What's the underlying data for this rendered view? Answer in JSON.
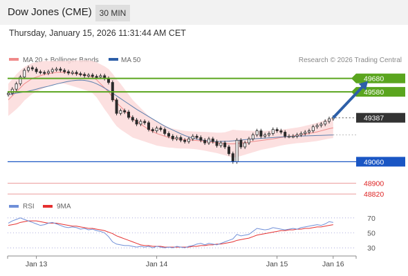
{
  "header": {
    "title": "Dow Jones (CME)",
    "timeframe": "30 MIN"
  },
  "datetime": "Thursday, January 15, 2026 11:31:44 AM CET",
  "colors": {
    "resistance": "#5aa51e",
    "support": "#1a56c4",
    "price": "#333333",
    "ma20": "#f08a8a",
    "bands": "#fbdada",
    "ma50": "#5b7fae",
    "candle_up": "#2a2a2a",
    "candle_down": "#2a2a2a",
    "rsi": "#6f8fd8",
    "rsi_ma": "#e53030",
    "arrow": "#2d5fa8"
  },
  "chart_data": [
    {
      "type": "candlestick",
      "legend": [
        {
          "label": "MA 20 + Bollinger Bands",
          "color": "#f08a8a"
        },
        {
          "label": "MA 50",
          "color": "#2d5fa8"
        }
      ],
      "source": "Research © 2026 Trading Central",
      "ylim": [
        48800,
        49750
      ],
      "x_ticks": [
        {
          "label": "Jan 13",
          "index": 7
        },
        {
          "label": "Jan 14",
          "index": 37
        },
        {
          "label": "Jan 15",
          "index": 67
        },
        {
          "label": "Jan 16",
          "index": 81
        }
      ],
      "last_price": 49387,
      "levels": [
        {
          "value": 49680,
          "label": "49680",
          "kind": "resistance"
        },
        {
          "value": 49580,
          "label": "49580",
          "kind": "resistance"
        },
        {
          "value": 49060,
          "label": "49060",
          "kind": "support"
        },
        {
          "value": 48900,
          "label": "48900",
          "kind": "minor"
        },
        {
          "value": 48820,
          "label": "48820",
          "kind": "minor"
        }
      ],
      "closes": [
        49570,
        49600,
        49640,
        49690,
        49740,
        49760,
        49750,
        49730,
        49725,
        49720,
        49730,
        49745,
        49750,
        49740,
        49730,
        49720,
        49725,
        49715,
        49710,
        49700,
        49705,
        49695,
        49690,
        49700,
        49680,
        49650,
        49520,
        49420,
        49440,
        49430,
        49390,
        49370,
        49340,
        49360,
        49350,
        49300,
        49290,
        49310,
        49300,
        49270,
        49250,
        49230,
        49240,
        49220,
        49210,
        49230,
        49250,
        49240,
        49220,
        49200,
        49230,
        49210,
        49180,
        49200,
        49170,
        49120,
        49060,
        49220,
        49170,
        49200,
        49230,
        49260,
        49290,
        49250,
        49260,
        49270,
        49300,
        49290,
        49280,
        49250,
        49250,
        49250,
        49260,
        49270,
        49280,
        49290,
        49320,
        49330,
        49340,
        49360,
        49380,
        49390
      ],
      "ma20": [
        49520,
        49550,
        49580,
        49610,
        49640,
        49660,
        49680,
        49690,
        49700,
        49710,
        49715,
        49720,
        49725,
        49726,
        49725,
        49722,
        49718,
        49714,
        49710,
        49705,
        49700,
        49690,
        49670,
        49640,
        49610,
        49580,
        49540,
        49500,
        49470,
        49440,
        49410,
        49380,
        49360,
        49340,
        49320,
        49300,
        49285,
        49270,
        49260,
        49250,
        49240,
        49235,
        49230,
        49226,
        49224,
        49222,
        49220,
        49218,
        49215,
        49212,
        49208,
        49204,
        49200,
        49196,
        49194,
        49193,
        49193,
        49195,
        49198,
        49202,
        49206,
        49210,
        49214,
        49218,
        49222,
        49226,
        49230,
        49235,
        49240,
        49244,
        49248,
        49252,
        49256,
        49260,
        49265,
        49270,
        49276,
        49282,
        49290,
        49298,
        49306,
        49312
      ],
      "bb_width": [
        120,
        125,
        130,
        130,
        125,
        120,
        115,
        110,
        105,
        100,
        95,
        90,
        85,
        85,
        85,
        90,
        95,
        100,
        105,
        110,
        115,
        120,
        130,
        145,
        160,
        170,
        175,
        175,
        170,
        160,
        150,
        140,
        130,
        120,
        110,
        100,
        95,
        90,
        85,
        80,
        75,
        72,
        70,
        68,
        66,
        65,
        65,
        66,
        68,
        70,
        72,
        74,
        76,
        80,
        85,
        95,
        105,
        100,
        95,
        90,
        85,
        80,
        75,
        70,
        68,
        66,
        64,
        62,
        60,
        58,
        58,
        58,
        58,
        60,
        62,
        64,
        66,
        68,
        70,
        72,
        74,
        76
      ],
      "ma50": [
        49560,
        49565,
        49570,
        49575,
        49580,
        49585,
        49592,
        49600,
        49608,
        49615,
        49622,
        49630,
        49638,
        49645,
        49652,
        49658,
        49663,
        49666,
        49667,
        49665,
        49660,
        49652,
        49640,
        49625,
        49608,
        49590,
        49570,
        49550,
        49530,
        49510,
        49490,
        49470,
        49450,
        49432,
        49414,
        49396,
        49378,
        49360,
        49342,
        49325,
        49310,
        49296,
        49282,
        49268,
        49255,
        49244,
        49236,
        49229,
        49223,
        49218,
        49214,
        49212,
        49211,
        49211,
        49212,
        49213,
        49215,
        49218,
        49221,
        49224,
        49227,
        49230,
        49232,
        49234,
        49236,
        49238,
        49240,
        49242,
        49244,
        49246,
        49248,
        49249,
        49250,
        49251,
        49252,
        49253,
        49254,
        49255,
        49256,
        49257,
        49258,
        49259
      ],
      "arrow": {
        "from_index": 81,
        "from": 49387,
        "to_index": 90,
        "to": 49660
      }
    },
    {
      "type": "line",
      "legend": [
        {
          "label": "RSI",
          "color": "#6f8fd8"
        },
        {
          "label": "9MA",
          "color": "#e53030"
        }
      ],
      "y_ticks": [
        70,
        50,
        30
      ],
      "ylim": [
        20,
        80
      ],
      "series": [
        {
          "name": "RSI",
          "values": [
            63,
            66,
            68,
            70,
            68,
            66,
            64,
            62,
            60,
            61,
            63,
            64,
            62,
            60,
            58,
            57,
            58,
            57,
            55,
            56,
            54,
            55,
            53,
            52,
            50,
            45,
            38,
            35,
            34,
            33,
            33,
            32,
            31,
            32,
            31,
            32,
            30,
            32,
            31,
            30,
            31,
            30,
            32,
            31,
            30,
            32,
            33,
            35,
            36,
            34,
            36,
            35,
            34,
            36,
            38,
            40,
            42,
            48,
            46,
            47,
            48,
            52,
            56,
            55,
            54,
            55,
            57,
            56,
            55,
            54,
            55,
            56,
            55,
            57,
            58,
            59,
            60,
            61,
            60,
            62,
            65,
            64
          ]
        },
        {
          "name": "9MA",
          "values": [
            60,
            61,
            62,
            64,
            65,
            66,
            66,
            66,
            65,
            64,
            63,
            63,
            63,
            62,
            61,
            60,
            59,
            59,
            58,
            57,
            56,
            56,
            55,
            54,
            53,
            51,
            49,
            46,
            44,
            42,
            40,
            38,
            36,
            34,
            33,
            33,
            32,
            32,
            32,
            31,
            31,
            31,
            31,
            31,
            31,
            31,
            32,
            32,
            33,
            33,
            34,
            34,
            35,
            35,
            36,
            37,
            38,
            40,
            41,
            42,
            43,
            45,
            47,
            48,
            49,
            50,
            51,
            52,
            53,
            53,
            54,
            54,
            55,
            55,
            56,
            56,
            57,
            58,
            58,
            59,
            60,
            61
          ]
        }
      ]
    }
  ]
}
